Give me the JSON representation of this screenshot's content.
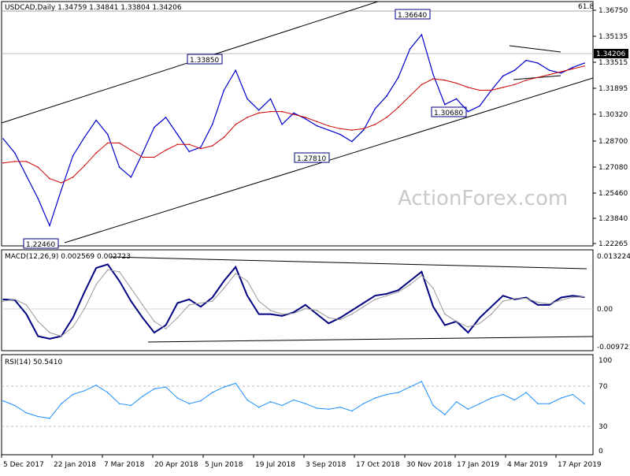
{
  "chart_data": {
    "type": "line",
    "symbol": "USDCAD",
    "timeframe": "Daily",
    "ohlc": {
      "open": "1.34759",
      "high": "1.34841",
      "low": "1.33804",
      "close": "1.34206"
    },
    "header": "USDCAD,Daily   1.34759 1.34841 1.33804 1.34206",
    "watermark": "ActionForex.com",
    "fib_label": "61.8",
    "last_price_label": "1.34206",
    "x_tick_labels": [
      "5 Dec 2017",
      "22 Jan 2018",
      "7 Mar 2018",
      "20 Apr 2018",
      "5 Jun 2018",
      "19 Jul 2018",
      "3 Sep 2018",
      "17 Oct 2018",
      "30 Nov 2018",
      "17 Jan 2019",
      "4 Mar 2019",
      "17 Apr 2019"
    ],
    "price_panel": {
      "ylim": [
        1.215,
        1.382
      ],
      "y_ticks": [
        "1.36750",
        "1.35135",
        "1.33515",
        "1.31895",
        "1.30320",
        "1.28700",
        "1.27080",
        "1.25460",
        "1.23840",
        "1.22265"
      ],
      "series": [
        {
          "name": "Price",
          "color": "#0000cc",
          "values": [
            1.288,
            1.278,
            1.262,
            1.246,
            1.227,
            1.252,
            1.276,
            1.289,
            1.301,
            1.291,
            1.268,
            1.261,
            1.278,
            1.296,
            1.303,
            1.291,
            1.279,
            1.282,
            1.298,
            1.322,
            1.336,
            1.316,
            1.308,
            1.316,
            1.298,
            1.306,
            1.302,
            1.297,
            1.294,
            1.291,
            1.286,
            1.294,
            1.309,
            1.318,
            1.331,
            1.351,
            1.361,
            1.333,
            1.312,
            1.316,
            1.307,
            1.311,
            1.322,
            1.332,
            1.336,
            1.343,
            1.341,
            1.336,
            1.334,
            1.338,
            1.341
          ]
        },
        {
          "name": "MA",
          "color": "#cc0000",
          "values": [
            1.271,
            1.272,
            1.272,
            1.268,
            1.26,
            1.257,
            1.261,
            1.269,
            1.278,
            1.285,
            1.285,
            1.28,
            1.275,
            1.275,
            1.28,
            1.284,
            1.284,
            1.281,
            1.283,
            1.289,
            1.298,
            1.303,
            1.306,
            1.307,
            1.307,
            1.305,
            1.303,
            1.3,
            1.297,
            1.295,
            1.294,
            1.295,
            1.298,
            1.303,
            1.31,
            1.318,
            1.326,
            1.33,
            1.329,
            1.327,
            1.324,
            1.322,
            1.322,
            1.324,
            1.326,
            1.329,
            1.331,
            1.333,
            1.335,
            1.337,
            1.339
          ]
        }
      ],
      "annotations": [
        "1.22460",
        "1.33850",
        "1.27810",
        "1.36640",
        "1.30680"
      ]
    },
    "macd_panel": {
      "label": "MACD(12,26,9) 0.002569 0.002723",
      "ylim": [
        -0.0115,
        0.0148
      ],
      "y_ticks": [
        "0.013224",
        "0.00",
        "-0.009721"
      ],
      "series": [
        {
          "name": "MACD",
          "color": "#000080",
          "values": [
            0.002,
            0.0018,
            -0.002,
            -0.008,
            -0.0087,
            -0.008,
            -0.003,
            0.004,
            0.0105,
            0.0115,
            0.007,
            0.0015,
            -0.003,
            -0.007,
            -0.005,
            0.001,
            0.002,
            0.0,
            0.0025,
            0.007,
            0.0108,
            0.003,
            -0.002,
            -0.002,
            -0.0025,
            -0.0015,
            0.0005,
            -0.002,
            -0.0045,
            -0.003,
            -0.001,
            0.001,
            0.003,
            0.0035,
            0.0045,
            0.007,
            0.0095,
            0.0,
            -0.005,
            -0.004,
            -0.007,
            -0.003,
            0.0,
            0.003,
            0.002,
            0.0025,
            0.0005,
            0.0005,
            0.0025,
            0.003,
            0.0026
          ]
        },
        {
          "name": "Signal",
          "color": "#999999",
          "values": [
            0.0015,
            0.002,
            0.0005,
            -0.004,
            -0.007,
            -0.008,
            -0.0055,
            -0.0005,
            0.006,
            0.01,
            0.0095,
            0.005,
            0.0005,
            -0.004,
            -0.006,
            -0.003,
            0.0005,
            0.001,
            0.0015,
            0.005,
            0.009,
            0.007,
            0.0015,
            -0.001,
            -0.002,
            -0.0018,
            -0.0005,
            -0.001,
            -0.003,
            -0.0035,
            -0.002,
            0.0,
            0.002,
            0.003,
            0.004,
            0.006,
            0.0085,
            0.005,
            -0.002,
            -0.004,
            -0.0055,
            -0.0045,
            -0.002,
            0.0015,
            0.0022,
            0.0023,
            0.0012,
            0.0008,
            0.0018,
            0.0026,
            0.0027
          ]
        }
      ]
    },
    "rsi_panel": {
      "label": "RSI(14) 50.5410",
      "ylim": [
        0,
        100
      ],
      "y_ticks": [
        "100",
        "70",
        "30",
        "0"
      ],
      "levels": [
        70,
        30
      ],
      "series": [
        {
          "name": "RSI",
          "color": "#1e90ff",
          "values": [
            55,
            50,
            42,
            38,
            36,
            52,
            62,
            66,
            72,
            64,
            52,
            50,
            60,
            68,
            70,
            58,
            52,
            55,
            64,
            70,
            74,
            56,
            48,
            54,
            50,
            56,
            52,
            47,
            46,
            48,
            44,
            52,
            58,
            62,
            64,
            70,
            76,
            50,
            40,
            54,
            46,
            52,
            58,
            62,
            56,
            64,
            52,
            52,
            58,
            62,
            52
          ]
        }
      ]
    }
  }
}
